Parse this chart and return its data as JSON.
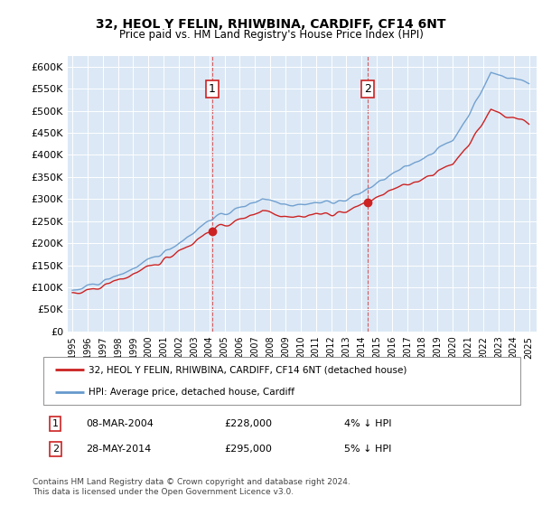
{
  "title": "32, HEOL Y FELIN, RHIWBINA, CARDIFF, CF14 6NT",
  "subtitle": "Price paid vs. HM Land Registry's House Price Index (HPI)",
  "ylim": [
    0,
    625000
  ],
  "yticks": [
    0,
    50000,
    100000,
    150000,
    200000,
    250000,
    300000,
    350000,
    400000,
    450000,
    500000,
    550000,
    600000
  ],
  "ytick_labels": [
    "£0",
    "£50K",
    "£100K",
    "£150K",
    "£200K",
    "£250K",
    "£300K",
    "£350K",
    "£400K",
    "£450K",
    "£500K",
    "£550K",
    "£600K"
  ],
  "plot_bg_color": "#dce8f5",
  "hpi_line_color": "#6699cc",
  "price_line_color": "#cc2222",
  "sale1_price": 228000,
  "sale2_price": 295000,
  "sale1_x": 2004.17,
  "sale2_x": 2014.38,
  "sale1_date": "08-MAR-2004",
  "sale2_date": "28-MAY-2014",
  "sale1_pct": "4% ↓ HPI",
  "sale2_pct": "5% ↓ HPI",
  "legend_line1": "32, HEOL Y FELIN, RHIWBINA, CARDIFF, CF14 6NT (detached house)",
  "legend_line2": "HPI: Average price, detached house, Cardiff",
  "footer1": "Contains HM Land Registry data © Crown copyright and database right 2024.",
  "footer2": "This data is licensed under the Open Government Licence v3.0."
}
